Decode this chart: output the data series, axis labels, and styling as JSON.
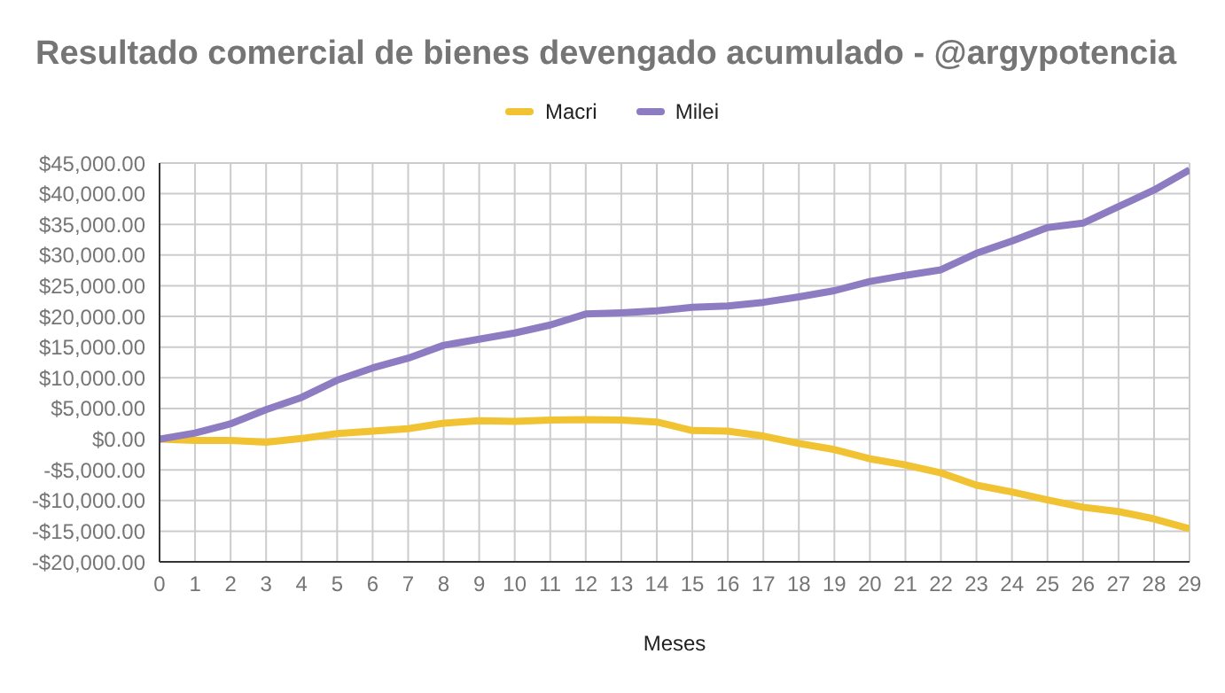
{
  "chart_data": {
    "type": "line",
    "title": "Resultado comercial de bienes devengado acumulado - @argypotencia",
    "xlabel": "Meses",
    "x": [
      0,
      1,
      2,
      3,
      4,
      5,
      6,
      7,
      8,
      9,
      10,
      11,
      12,
      13,
      14,
      15,
      16,
      17,
      18,
      19,
      20,
      21,
      22,
      23,
      24,
      25,
      26,
      27,
      28,
      29
    ],
    "series": [
      {
        "name": "Macri",
        "color": "#f1c232",
        "values": [
          0,
          -200,
          -200,
          -500,
          100,
          900,
          1300,
          1700,
          2600,
          3000,
          2900,
          3100,
          3200,
          3100,
          2800,
          1400,
          1300,
          500,
          -700,
          -1700,
          -3200,
          -4200,
          -5500,
          -7500,
          -8600,
          -9900,
          -11100,
          -11800,
          -13000,
          -14600
        ]
      },
      {
        "name": "Milei",
        "color": "#8e7cc3",
        "values": [
          0,
          1000,
          2500,
          4800,
          6800,
          9600,
          11600,
          13200,
          15300,
          16300,
          17300,
          18600,
          20400,
          20600,
          20900,
          21500,
          21700,
          22300,
          23200,
          24200,
          25700,
          26700,
          27600,
          30300,
          32300,
          34500,
          35200,
          37900,
          40600,
          43900
        ]
      }
    ],
    "xlim": [
      0,
      29
    ],
    "xticks": [
      0,
      1,
      2,
      3,
      4,
      5,
      6,
      7,
      8,
      9,
      10,
      11,
      12,
      13,
      14,
      15,
      16,
      17,
      18,
      19,
      20,
      21,
      22,
      23,
      24,
      25,
      26,
      27,
      28,
      29
    ],
    "ylim": [
      -20000,
      45000
    ],
    "yticks": [
      {
        "value": -20000,
        "label": "-$20,000.00"
      },
      {
        "value": -15000,
        "label": "-$15,000.00"
      },
      {
        "value": -10000,
        "label": "-$10,000.00"
      },
      {
        "value": -5000,
        "label": "-$5,000.00"
      },
      {
        "value": 0,
        "label": "$0.00"
      },
      {
        "value": 5000,
        "label": "$5,000.00"
      },
      {
        "value": 10000,
        "label": "$10,000.00"
      },
      {
        "value": 15000,
        "label": "$15,000.00"
      },
      {
        "value": 20000,
        "label": "$20,000.00"
      },
      {
        "value": 25000,
        "label": "$25,000.00"
      },
      {
        "value": 30000,
        "label": "$30,000.00"
      },
      {
        "value": 35000,
        "label": "$35,000.00"
      },
      {
        "value": 40000,
        "label": "$40,000.00"
      },
      {
        "value": 45000,
        "label": "$45,000.00"
      }
    ],
    "grid": true,
    "legend": "top",
    "marker": "none",
    "line_style": "solid"
  }
}
